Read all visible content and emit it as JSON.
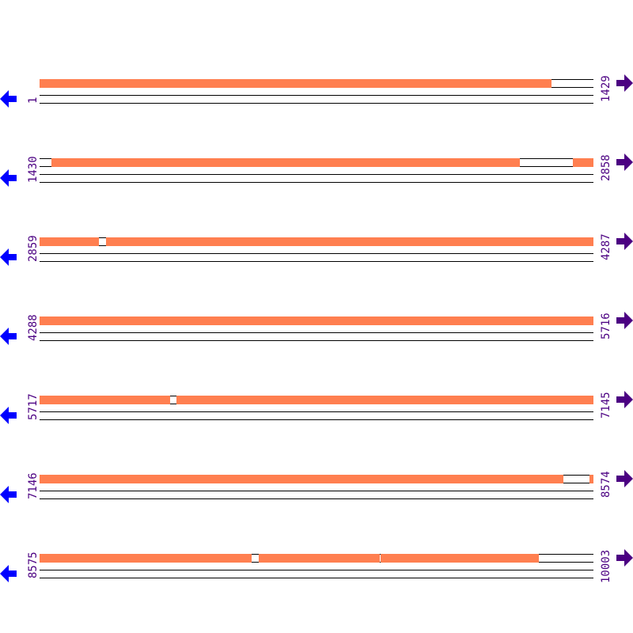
{
  "colors": {
    "feature": "#ff7f50",
    "line": "#000000",
    "label": "#4b0082",
    "reverse_arrow": "#0000ff",
    "forward_arrow": "#4b0082"
  },
  "icons": {
    "reverse": "arrow-left-icon",
    "forward": "arrow-right-icon"
  },
  "rows": [
    {
      "start": 1,
      "end": 1429,
      "segments": [
        [
          1,
          1321
        ]
      ]
    },
    {
      "start": 1430,
      "end": 2858,
      "segments": [
        [
          1461,
          2669
        ],
        [
          2806,
          2858
        ]
      ]
    },
    {
      "start": 2859,
      "end": 4287,
      "segments": [
        [
          2859,
          3012
        ],
        [
          3030,
          4287
        ]
      ]
    },
    {
      "start": 4288,
      "end": 5716,
      "segments": [
        [
          4288,
          5716
        ]
      ]
    },
    {
      "start": 5717,
      "end": 7145,
      "segments": [
        [
          5717,
          6052
        ],
        [
          6070,
          7145
        ]
      ]
    },
    {
      "start": 7146,
      "end": 8574,
      "segments": [
        [
          7146,
          8497
        ],
        [
          8565,
          8574
        ]
      ]
    },
    {
      "start": 8575,
      "end": 10003,
      "segments": [
        [
          8575,
          9122
        ],
        [
          9140,
          9451
        ],
        [
          9455,
          9863
        ]
      ]
    }
  ]
}
